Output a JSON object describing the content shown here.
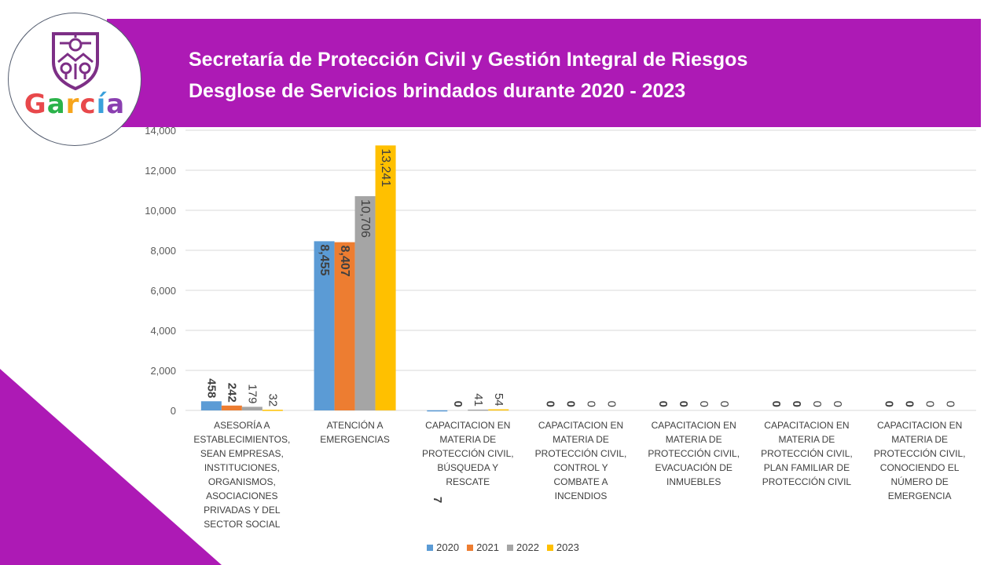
{
  "header": {
    "line1": "Secretaría de Protección Civil y Gestión Integral de Riesgos",
    "line2": "Desglose de Servicios brindados durante 2020 - 2023"
  },
  "logo": {
    "word": "García",
    "letters": [
      "G",
      "a",
      "r",
      "c",
      "í",
      "a"
    ],
    "colors": [
      "#e8484b",
      "#2bb34a",
      "#f7a51c",
      "#e8484b",
      "#3aa0db",
      "#8a3fb0"
    ]
  },
  "colors": {
    "banner": "#ad1ab5",
    "corner": "#ad1ab5",
    "series": [
      "#5b9bd5",
      "#ed7d31",
      "#a5a5a5",
      "#ffc000"
    ]
  },
  "chart_data": {
    "type": "bar",
    "title": "",
    "xlabel": "",
    "ylabel": "",
    "ylim": [
      0,
      14000
    ],
    "yticks": [
      "0",
      "2,000",
      "4,000",
      "6,000",
      "8,000",
      "10,000",
      "12,000",
      "14,000"
    ],
    "categories": [
      "ASESORÍA A ESTABLECIMIENTOS, SEAN EMPRESAS, INSTITUCIONES, ORGANISMOS, ASOCIACIONES PRIVADAS Y DEL SECTOR SOCIAL",
      "ATENCIÓN A EMERGENCIAS",
      "CAPACITACION EN MATERIA DE PROTECCIÓN CIVIL, BÚSQUEDA Y RESCATE",
      "CAPACITACION EN MATERIA DE PROTECCIÓN CIVIL, CONTROL Y COMBATE A INCENDIOS",
      "CAPACITACION EN MATERIA DE PROTECCIÓN CIVIL, EVACUACIÓN DE INMUEBLES",
      "CAPACITACION EN MATERIA DE PROTECCIÓN CIVIL, PLAN FAMILIAR DE PROTECCIÓN CIVIL",
      "CAPACITACION EN MATERIA DE PROTECCIÓN CIVIL, CONOCIENDO EL NÚMERO DE EMERGENCIA"
    ],
    "series": [
      {
        "name": "2020",
        "values": [
          458,
          8455,
          7,
          0,
          0,
          0,
          0
        ],
        "labels": [
          "458",
          "8,455",
          "7",
          "0",
          "0",
          "0",
          "0"
        ]
      },
      {
        "name": "2021",
        "values": [
          242,
          8407,
          0,
          0,
          0,
          0,
          0
        ],
        "labels": [
          "242",
          "8,407",
          "0",
          "0",
          "0",
          "0",
          "0"
        ]
      },
      {
        "name": "2022",
        "values": [
          179,
          10706,
          41,
          0,
          0,
          0,
          0
        ],
        "labels": [
          "179",
          "10,706",
          "41",
          "0",
          "0",
          "0",
          "0"
        ]
      },
      {
        "name": "2023",
        "values": [
          32,
          13241,
          54,
          0,
          0,
          0,
          0
        ],
        "labels": [
          "32",
          "13,241",
          "54",
          "0",
          "0",
          "0",
          "0"
        ]
      }
    ],
    "legend_position": "bottom",
    "grid": true
  }
}
